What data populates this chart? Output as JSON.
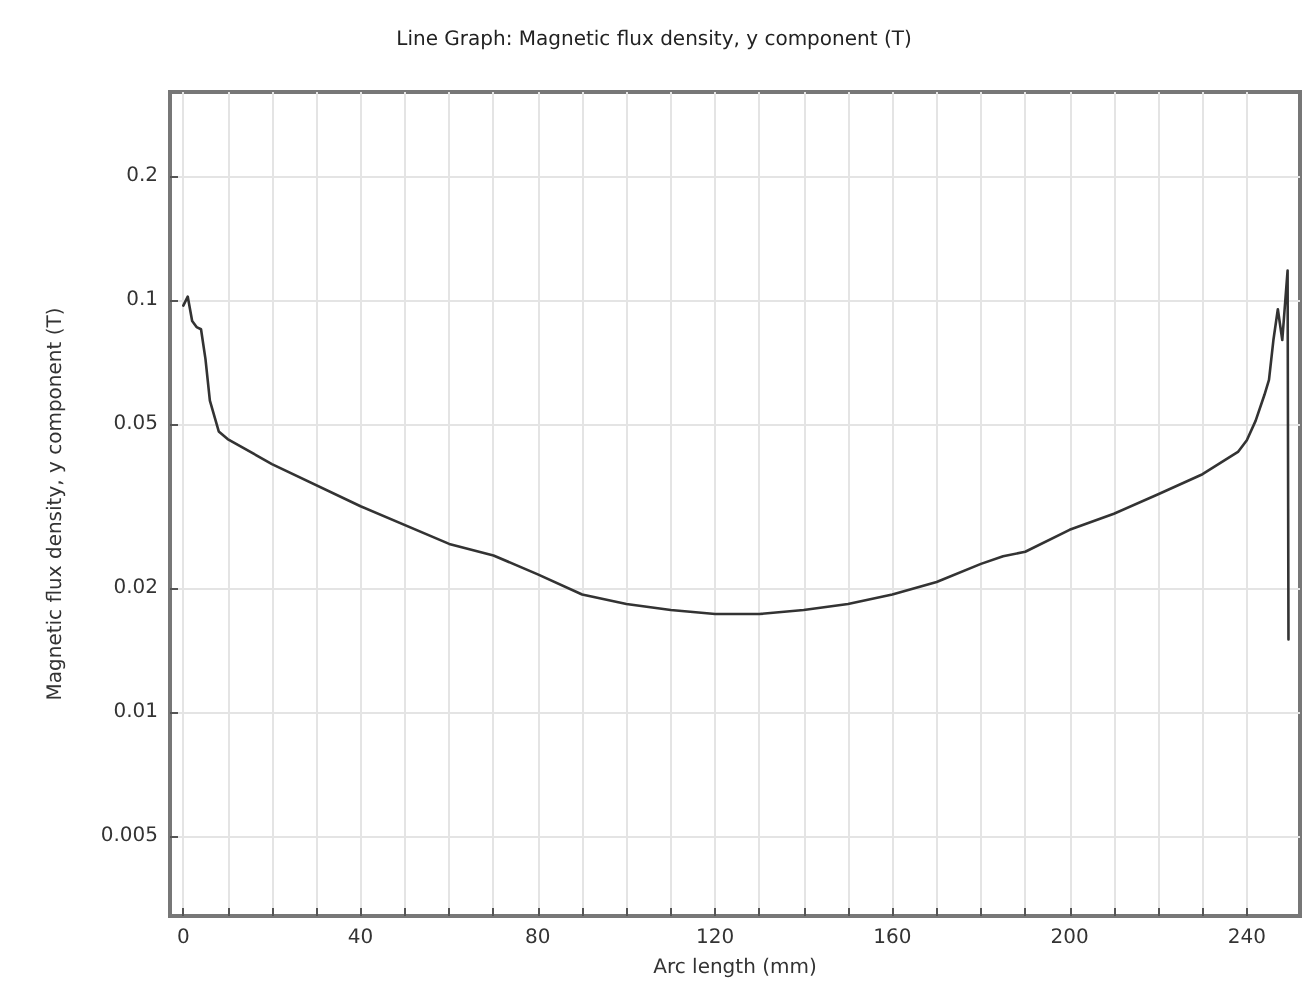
{
  "chart_data": {
    "type": "line",
    "title": "Line Graph: Magnetic flux density, y component (T)",
    "xlabel": "Arc length (mm)",
    "ylabel": "Magnetic flux density, y component (T)",
    "xlim": [
      -3,
      252
    ],
    "ylim": [
      0.0032,
      0.32
    ],
    "log": "y",
    "grid": true,
    "marker": "none",
    "line_style": "solid",
    "xticks": [
      0,
      {
        "value": 10,
        "label": null
      },
      {
        "value": 20,
        "label": null
      },
      {
        "value": 30,
        "label": null
      },
      40,
      {
        "value": 50,
        "label": null
      },
      {
        "value": 60,
        "label": null
      },
      {
        "value": 70,
        "label": null
      },
      80,
      {
        "value": 90,
        "label": null
      },
      {
        "value": 100,
        "label": null
      },
      {
        "value": 110,
        "label": null
      },
      120,
      {
        "value": 130,
        "label": null
      },
      {
        "value": 140,
        "label": null
      },
      {
        "value": 150,
        "label": null
      },
      160,
      {
        "value": 170,
        "label": null
      },
      {
        "value": 180,
        "label": null
      },
      {
        "value": 190,
        "label": null
      },
      200,
      {
        "value": 210,
        "label": null
      },
      {
        "value": 220,
        "label": null
      },
      {
        "value": 230,
        "label": null
      },
      240
    ],
    "yticks": [
      0.005,
      0.01,
      0.02,
      0.05,
      0.1,
      0.2
    ],
    "series": [
      {
        "color": "#333333",
        "x": [
          0,
          1,
          2,
          3,
          4,
          5,
          6,
          8,
          10,
          20,
          40,
          60,
          70,
          80,
          90,
          100,
          110,
          120,
          130,
          140,
          150,
          160,
          170,
          180,
          185,
          190,
          200,
          210,
          220,
          230,
          238,
          240,
          242,
          244,
          245,
          246,
          247,
          248,
          249.2,
          249.4
        ],
        "values": [
          0.097,
          0.102,
          0.089,
          0.086,
          0.085,
          0.072,
          0.057,
          0.048,
          0.046,
          0.04,
          0.0316,
          0.0256,
          0.024,
          0.0216,
          0.0193,
          0.0183,
          0.0177,
          0.0173,
          0.0173,
          0.0177,
          0.0183,
          0.0193,
          0.0207,
          0.0229,
          0.0239,
          0.0245,
          0.0277,
          0.0303,
          0.0338,
          0.0378,
          0.0428,
          0.0457,
          0.051,
          0.059,
          0.064,
          0.08,
          0.095,
          0.08,
          0.118,
          0.015
        ]
      }
    ]
  }
}
